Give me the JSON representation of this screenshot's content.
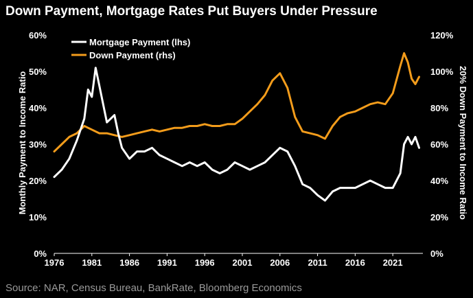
{
  "title": "Down Payment, Mortgage Rates Put Buyers Under Pressure",
  "source": "Source: NAR, Census Bureau, BankRate, Bloomberg Economics",
  "chart_data": {
    "type": "line",
    "title": "Down Payment, Mortgage Rates Put Buyers Under Pressure",
    "xlabel": "",
    "ylabel_left": "Monthly Payment to Income Ratio",
    "ylabel_right": "20% Down Payment to Income Ratio",
    "xlim": [
      1976,
      2025
    ],
    "ylim_left": [
      0,
      60
    ],
    "ylim_right": [
      0,
      120
    ],
    "x_ticks": [
      "1976",
      "1981",
      "1986",
      "1991",
      "1996",
      "2001",
      "2006",
      "2011",
      "2016",
      "2021"
    ],
    "y_ticks_left": [
      "0%",
      "10%",
      "20%",
      "30%",
      "40%",
      "50%",
      "60%"
    ],
    "y_ticks_right": [
      "0%",
      "20%",
      "40%",
      "60%",
      "80%",
      "100%",
      "120%"
    ],
    "colors": {
      "mortgage": "#ffffff",
      "down": "#f39c1b",
      "background": "#000000"
    },
    "legend_position": "top-left",
    "series": [
      {
        "name": "Mortgage Payment (lhs)",
        "axis": "left",
        "x": [
          1976,
          1977,
          1978,
          1979,
          1980,
          1980.5,
          1981,
          1981.5,
          1982,
          1983,
          1984,
          1984.5,
          1985,
          1986,
          1987,
          1988,
          1989,
          1990,
          1991,
          1992,
          1993,
          1994,
          1995,
          1996,
          1997,
          1998,
          1999,
          2000,
          2001,
          2002,
          2003,
          2004,
          2005,
          2006,
          2007,
          2008,
          2009,
          2010,
          2011,
          2012,
          2013,
          2014,
          2015,
          2016,
          2017,
          2018,
          2019,
          2020,
          2021,
          2022,
          2022.5,
          2023,
          2023.5,
          2024,
          2024.5
        ],
        "values": [
          21,
          23,
          26,
          31,
          37,
          45,
          43,
          51,
          46,
          36,
          38,
          33,
          29,
          26,
          28,
          28,
          29,
          27,
          26,
          25,
          24,
          25,
          24,
          25,
          23,
          22,
          23,
          25,
          24,
          23,
          24,
          25,
          27,
          29,
          28,
          24,
          19,
          18,
          16,
          14.5,
          17,
          18,
          18,
          18,
          19,
          20,
          19,
          18,
          18,
          22,
          30,
          32,
          30,
          32,
          29
        ]
      },
      {
        "name": "Down Payment (rhs)",
        "axis": "right",
        "x": [
          1976,
          1977,
          1978,
          1979,
          1980,
          1981,
          1982,
          1983,
          1984,
          1985,
          1986,
          1987,
          1988,
          1989,
          1990,
          1991,
          1992,
          1993,
          1994,
          1995,
          1996,
          1997,
          1998,
          1999,
          2000,
          2001,
          2002,
          2003,
          2004,
          2005,
          2006,
          2007,
          2008,
          2009,
          2010,
          2011,
          2012,
          2013,
          2014,
          2015,
          2016,
          2017,
          2018,
          2019,
          2020,
          2021,
          2022,
          2022.5,
          2023,
          2023.5,
          2024,
          2024.5
        ],
        "values": [
          56,
          60,
          64,
          66,
          70,
          68,
          66,
          66,
          65,
          64,
          65,
          66,
          67,
          68,
          67,
          68,
          69,
          69,
          70,
          70,
          71,
          70,
          70,
          71,
          71,
          74,
          78,
          82,
          87,
          95,
          99,
          91,
          75,
          67,
          66,
          65,
          63,
          70,
          75,
          77,
          78,
          80,
          82,
          83,
          82,
          88,
          103,
          110,
          105,
          96,
          93,
          97
        ]
      }
    ]
  }
}
